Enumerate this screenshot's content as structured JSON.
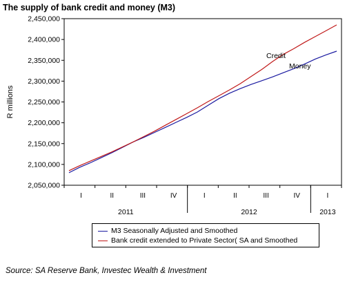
{
  "title": "The supply of bank credit and money (M3)",
  "source": "Source: SA Reserve Bank, Investec Wealth & Investment",
  "colors": {
    "m3": "#1a1aa0",
    "credit": "#c01818",
    "axis": "#000000",
    "grid": "#999999"
  },
  "chart_data": {
    "type": "line",
    "ylabel": "R millions",
    "ylim": [
      2050000,
      2450000
    ],
    "yticks": [
      2050000,
      2100000,
      2150000,
      2200000,
      2250000,
      2300000,
      2350000,
      2400000,
      2450000
    ],
    "ytick_labels": [
      "2,050,000",
      "2,100,000",
      "2,150,000",
      "2,200,000",
      "2,250,000",
      "2,300,000",
      "2,350,000",
      "2,400,000",
      "2,450,000"
    ],
    "x": [
      "2010-12",
      "2011-01",
      "2011-02",
      "2011-03",
      "2011-04",
      "2011-05",
      "2011-06",
      "2011-07",
      "2011-08",
      "2011-09",
      "2011-10",
      "2011-11",
      "2011-12",
      "2012-01",
      "2012-02",
      "2012-03",
      "2012-04",
      "2012-05",
      "2012-06",
      "2012-07",
      "2012-08",
      "2012-09",
      "2012-10",
      "2012-11",
      "2012-12",
      "2013-01"
    ],
    "quarter_labels": [
      "I",
      "II",
      "III",
      "IV",
      "I",
      "II",
      "III",
      "IV",
      "I"
    ],
    "year_labels": [
      "2011",
      "2012",
      "2013"
    ],
    "grid": true,
    "legend_position": "bottom",
    "series": [
      {
        "name": "M3 Seasonally Adjusted and Smoothed",
        "annotation": "Money",
        "values": [
          2080000,
          2093000,
          2104000,
          2116000,
          2128000,
          2141000,
          2154000,
          2165000,
          2177000,
          2189000,
          2201000,
          2213000,
          2226000,
          2242000,
          2258000,
          2271000,
          2282000,
          2292000,
          2301000,
          2310000,
          2320000,
          2330000,
          2341000,
          2353000,
          2363000,
          2372000
        ]
      },
      {
        "name": "Bank credit extended to Private Sector( SA and Smoothed",
        "annotation": "Credit",
        "values": [
          2085000,
          2097000,
          2108000,
          2119000,
          2130000,
          2142000,
          2154000,
          2167000,
          2180000,
          2194000,
          2208000,
          2222000,
          2236000,
          2251000,
          2265000,
          2279000,
          2294000,
          2311000,
          2328000,
          2347000,
          2364000,
          2378000,
          2393000,
          2407000,
          2421000,
          2435000
        ]
      }
    ]
  }
}
